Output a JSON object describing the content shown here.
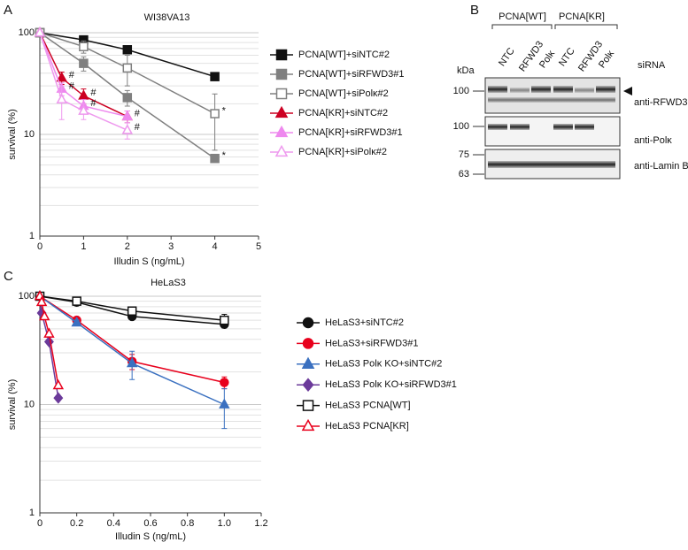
{
  "chart_data": [
    {
      "type": "line",
      "panel": "A",
      "title": "WI38VA13",
      "xlabel": "Illudin S (ng/mL)",
      "ylabel": "survival (%)",
      "xlim": [
        0,
        5
      ],
      "xticks": [
        0,
        1,
        2,
        3,
        4,
        5
      ],
      "ylim": [
        1,
        100
      ],
      "yticks": [
        1,
        10,
        100
      ],
      "log_y": true,
      "grid": true,
      "minor_yticks": [
        2,
        3,
        4,
        5,
        6,
        7,
        8,
        9,
        20,
        30,
        40,
        50,
        60,
        70,
        80,
        90
      ],
      "series": [
        {
          "name": "PCNA[WT]+siNTC#2",
          "color": "#111111",
          "marker": "square",
          "filled": true,
          "x": [
            0,
            1,
            2,
            4
          ],
          "values": [
            100,
            85,
            68,
            37
          ],
          "errors": [
            null,
            4,
            4,
            null
          ],
          "point_labels": [
            null,
            null,
            null,
            null
          ]
        },
        {
          "name": "PCNA[WT]+siRFWD3#1",
          "color": "#808080",
          "marker": "square",
          "filled": true,
          "x": [
            0,
            1,
            2,
            4
          ],
          "values": [
            100,
            50,
            23,
            5.8
          ],
          "errors": [
            null,
            8,
            4,
            null
          ],
          "point_labels": [
            null,
            null,
            null,
            "*"
          ]
        },
        {
          "name": "PCNA[WT]+siPolκ#2",
          "color": "#808080",
          "marker": "square",
          "filled": false,
          "x": [
            0,
            1,
            2,
            4
          ],
          "values": [
            100,
            73,
            45,
            16
          ],
          "errors": [
            null,
            10,
            15,
            9
          ],
          "point_labels": [
            null,
            null,
            null,
            "*"
          ]
        },
        {
          "name": "PCNA[KR]+siNTC#2",
          "color": "#cc0022",
          "marker": "triangle",
          "filled": true,
          "x": [
            0,
            0.5,
            1,
            2
          ],
          "values": [
            100,
            36,
            24,
            15
          ],
          "errors": [
            null,
            5,
            4,
            2
          ],
          "point_labels": [
            null,
            "#",
            "#",
            "#"
          ]
        },
        {
          "name": "PCNA[KR]+siRFWD3#1",
          "color": "#ee88ee",
          "marker": "triangle",
          "filled": true,
          "x": [
            0,
            0.5,
            1,
            2
          ],
          "values": [
            100,
            28,
            19,
            15
          ],
          "errors": [
            null,
            4,
            3,
            2
          ],
          "point_labels": [
            null,
            "#",
            "#",
            null
          ]
        },
        {
          "name": "PCNA[KR]+siPolκ#2",
          "color": "#ee99ee",
          "marker": "triangle",
          "filled": false,
          "x": [
            0,
            0.5,
            1,
            2
          ],
          "values": [
            100,
            22,
            17,
            11
          ],
          "errors": [
            null,
            8,
            3,
            2
          ],
          "point_labels": [
            null,
            null,
            null,
            "#"
          ]
        }
      ]
    },
    {
      "type": "line",
      "panel": "C",
      "title": "HeLaS3",
      "xlabel": "Illudin S (ng/mL)",
      "ylabel": "survival (%)",
      "xlim": [
        0,
        1.2
      ],
      "xticks": [
        0,
        0.2,
        0.4,
        0.6,
        0.8,
        {
          "value": 1,
          "label": "1.0"
        },
        1.2
      ],
      "ylim": [
        1,
        100
      ],
      "yticks": [
        1,
        10,
        100
      ],
      "log_y": true,
      "grid": true,
      "minor_yticks": [
        2,
        3,
        4,
        5,
        6,
        7,
        8,
        9,
        20,
        30,
        40,
        50,
        60,
        70,
        80,
        90
      ],
      "series": [
        {
          "name": "HeLaS3+siNTC#2",
          "color": "#111111",
          "marker": "circle",
          "filled": true,
          "x": [
            0,
            0.2,
            0.5,
            1
          ],
          "values": [
            100,
            88,
            65,
            55
          ],
          "errors": [
            null,
            4,
            4,
            4
          ],
          "point_labels": [
            null,
            null,
            null,
            null
          ]
        },
        {
          "name": "HeLaS3+siRFWD3#1",
          "color": "#e8001c",
          "marker": "circle",
          "filled": true,
          "x": [
            0,
            0.2,
            0.5,
            1
          ],
          "values": [
            100,
            60,
            25,
            16
          ],
          "errors": [
            null,
            3,
            4,
            2
          ],
          "point_labels": [
            null,
            null,
            null,
            null
          ]
        },
        {
          "name": "HeLaS3 Polκ KO+siNTC#2",
          "color": "#3a70c0",
          "marker": "triangle",
          "filled": true,
          "x": [
            0,
            0.2,
            0.5,
            1
          ],
          "values": [
            100,
            57,
            24,
            10
          ],
          "errors": [
            null,
            3,
            7,
            4
          ],
          "point_labels": [
            null,
            null,
            null,
            null
          ]
        },
        {
          "name": "HeLaS3 Polκ KO+siRFWD3#1",
          "color": "#6b3a9a",
          "marker": "diamond",
          "filled": true,
          "x": [
            0,
            0.01,
            0.05,
            0.1
          ],
          "values": [
            100,
            70,
            38,
            11.5
          ],
          "errors": [
            null,
            null,
            null,
            null
          ],
          "point_labels": [
            null,
            null,
            null,
            null
          ]
        },
        {
          "name": "HeLaS3 PCNA[WT]",
          "color": "#111111",
          "marker": "square",
          "filled": false,
          "x": [
            0,
            0.2,
            0.5,
            1
          ],
          "values": [
            100,
            90,
            73,
            60
          ],
          "errors": [
            null,
            4,
            5,
            8
          ],
          "point_labels": [
            null,
            null,
            null,
            null
          ]
        },
        {
          "name": "HeLaS3 PCNA[KR]",
          "color": "#e8001c",
          "marker": "triangle",
          "filled": false,
          "x": [
            0,
            0.01,
            0.025,
            0.05,
            0.1
          ],
          "values": [
            100,
            88,
            65,
            45,
            15
          ],
          "errors": [
            null,
            null,
            null,
            null,
            null
          ],
          "point_labels": [
            null,
            null,
            null,
            null,
            null
          ]
        }
      ]
    }
  ],
  "blot": {
    "panel": "B",
    "groups": [
      "PCNA[WT]",
      "PCNA[KR]"
    ],
    "lanes": [
      "NTC",
      "RFWD3",
      "Polκ",
      "NTC",
      "RFWD3",
      "Polκ"
    ],
    "kda_label": "kDa",
    "sirna_label": "siRNA",
    "antibodies": [
      "anti-RFWD3",
      "anti-Polκ",
      "anti-Lamin B"
    ],
    "markers": [
      "100",
      "100",
      "75",
      "63"
    ]
  }
}
